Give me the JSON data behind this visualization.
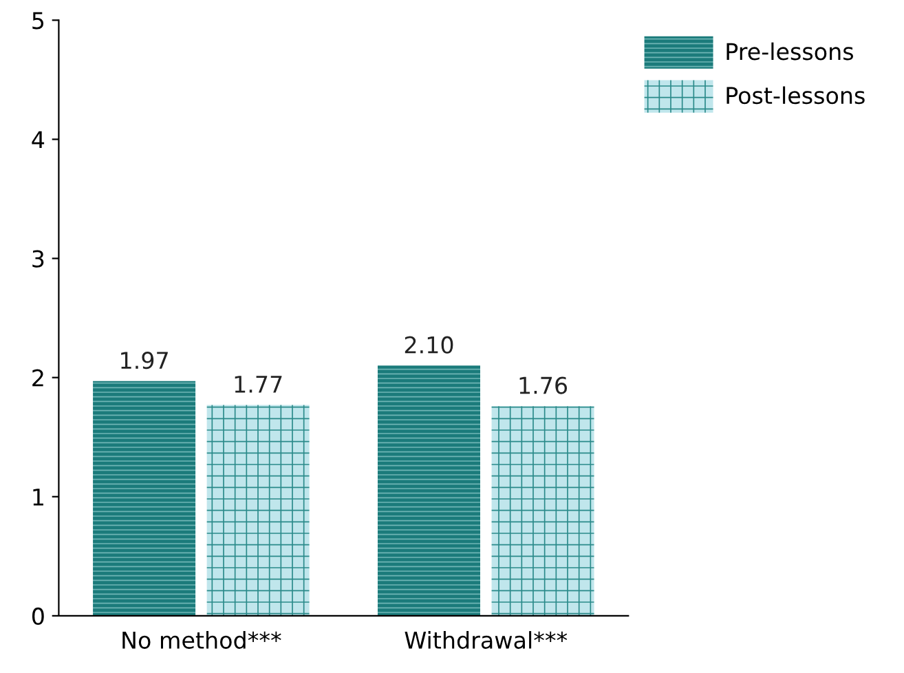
{
  "chart_data": {
    "type": "bar",
    "categories": [
      "No method***",
      "Withdrawal***"
    ],
    "series": [
      {
        "name": "Pre-lessons",
        "color": "#1b7b7b",
        "values": [
          1.97,
          2.1
        ]
      },
      {
        "name": "Post-lessons",
        "color": "#c0e6ec",
        "values": [
          1.77,
          1.76
        ]
      }
    ],
    "ylim": [
      0,
      5
    ],
    "yticks": [
      0,
      1,
      2,
      3,
      4,
      5
    ],
    "grid": false,
    "legend": "top right",
    "value_labels": [
      [
        "1.97",
        "2.10"
      ],
      [
        "1.77",
        "1.76"
      ]
    ]
  }
}
